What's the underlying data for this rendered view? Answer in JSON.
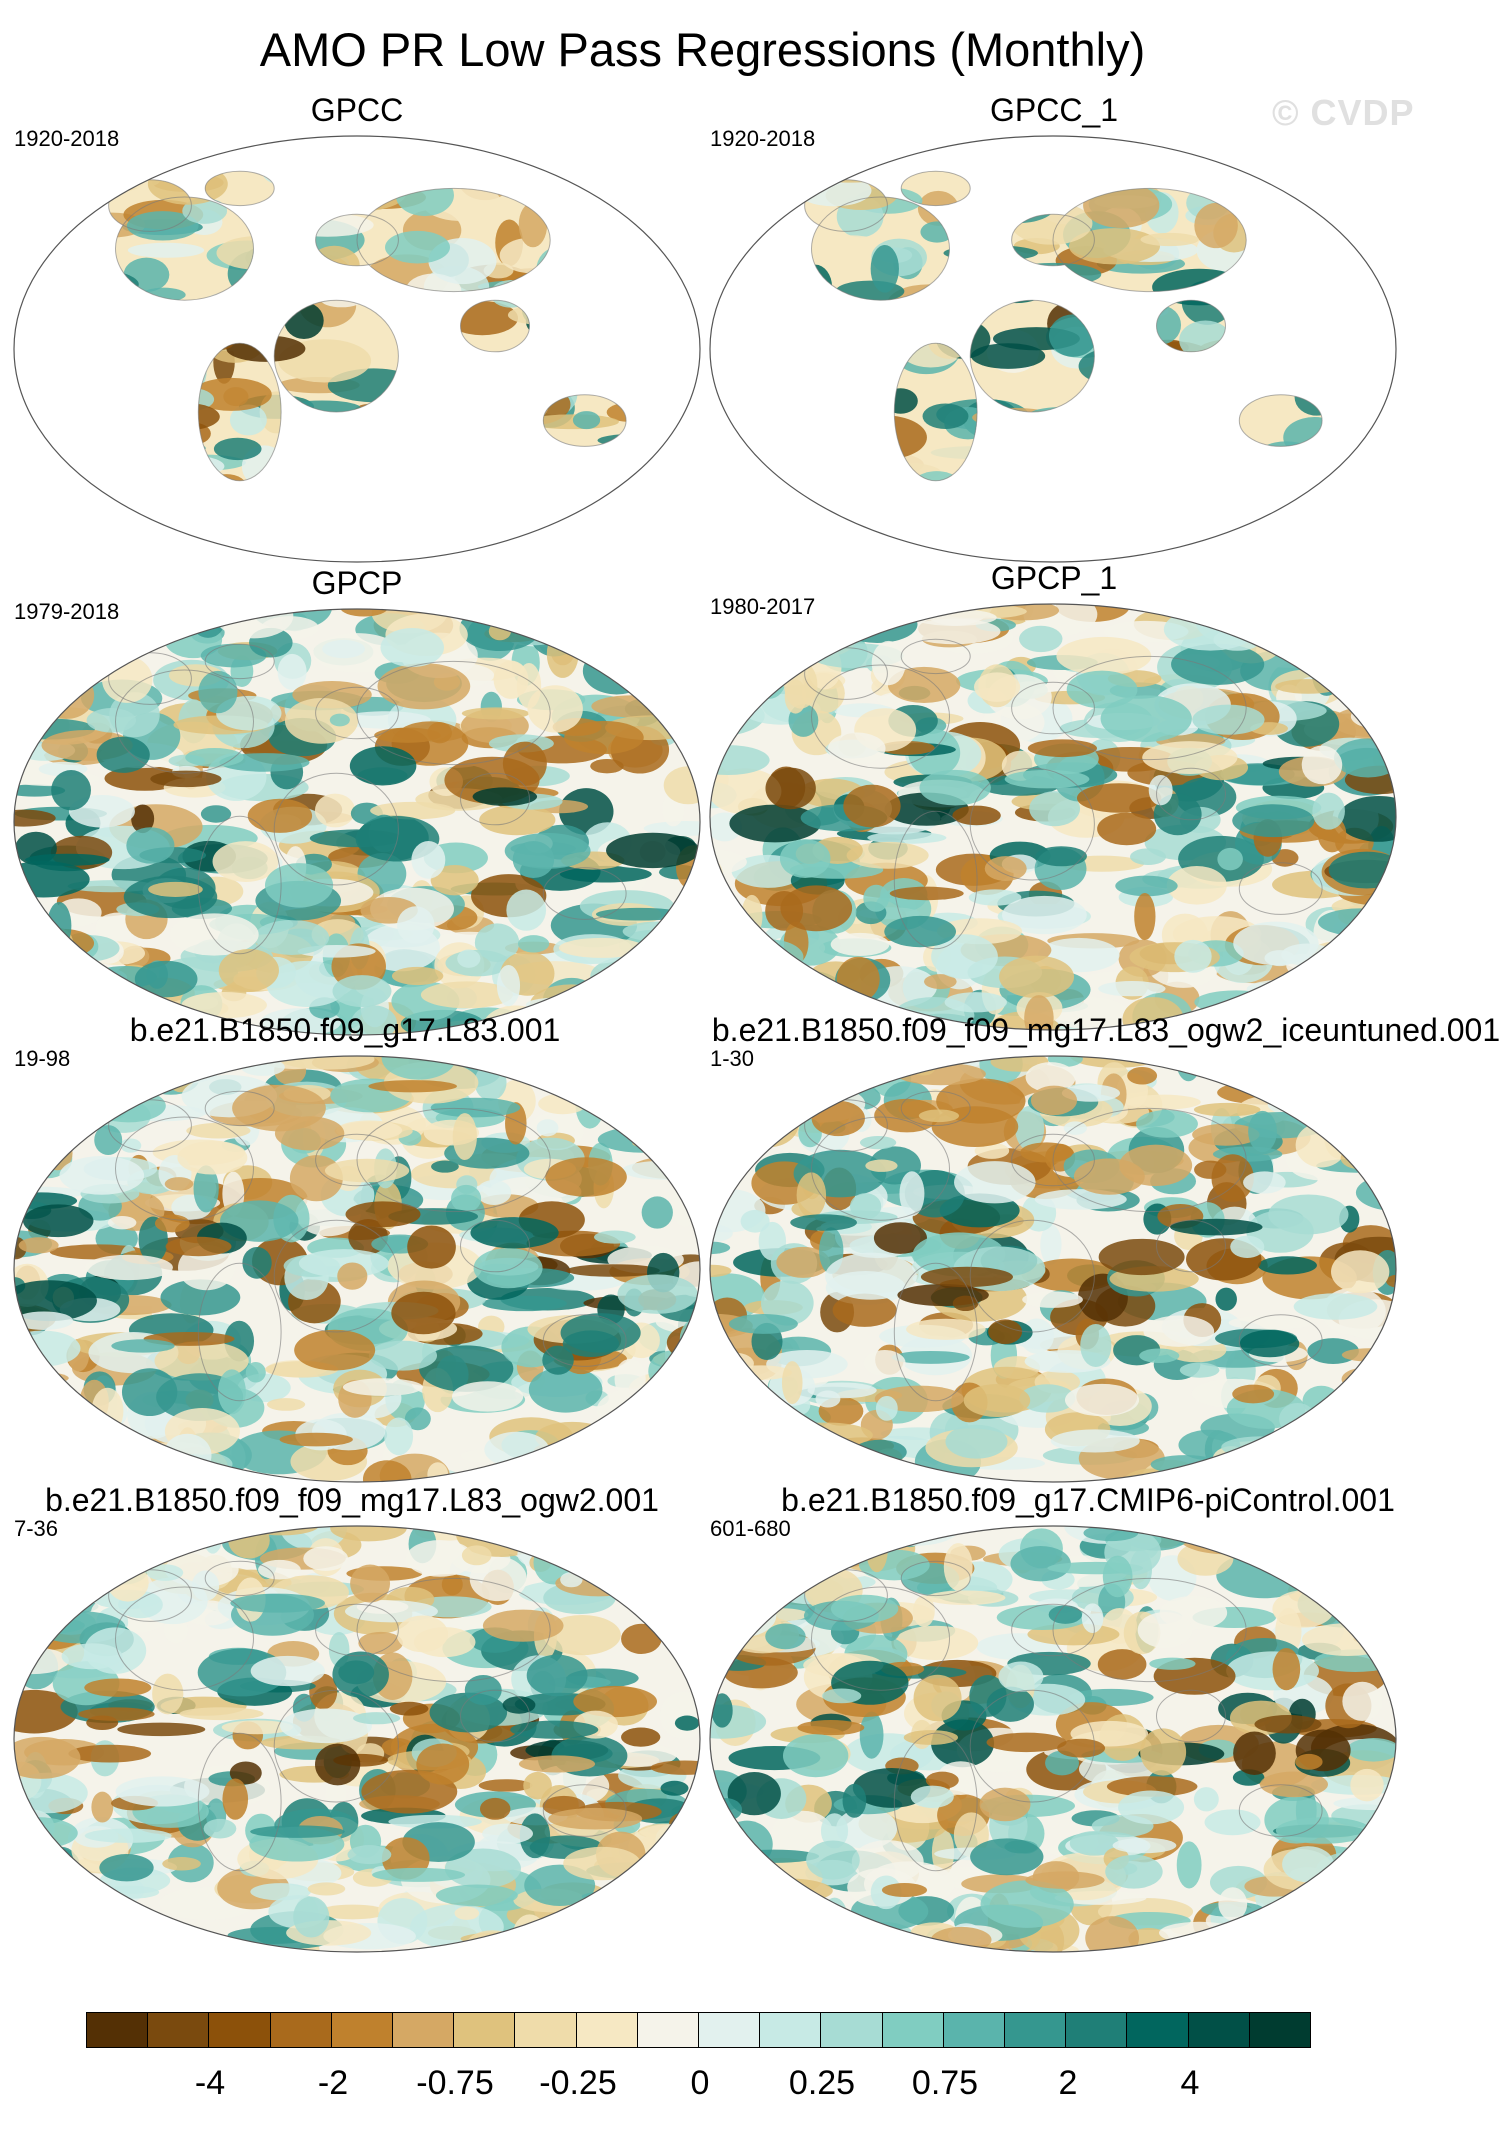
{
  "title": "AMO PR Low Pass Regressions (Monthly)",
  "watermark": "© CVDP",
  "colors": {
    "ocean_outline": "#555555",
    "coast": "#7a7a7a",
    "scale": [
      "#543005",
      "#7a4a0e",
      "#8c510a",
      "#a96a1c",
      "#bf812d",
      "#d5a864",
      "#dfc27d",
      "#efdcaa",
      "#f6e8c3",
      "#f5f3ea",
      "#e2f1ee",
      "#c7eae5",
      "#a7dcd4",
      "#80cdc1",
      "#5ab4ac",
      "#35978f",
      "#1f7f77",
      "#01665e",
      "#015047",
      "#003c30"
    ]
  },
  "panels": [
    {
      "name": "GPCC",
      "period": "1920-2018",
      "field": "land",
      "seed": 11
    },
    {
      "name": "GPCC_1",
      "period": "1920-2018",
      "field": "land",
      "seed": 12
    },
    {
      "name": "GPCP",
      "period": "1979-2018",
      "field": "global",
      "seed": 21
    },
    {
      "name": "GPCP_1",
      "period": "1980-2017",
      "field": "global",
      "seed": 22
    },
    {
      "name": "b.e21.B1850.f09_g17.L83.001",
      "period": "19-98",
      "field": "global",
      "seed": 31
    },
    {
      "name": "b.e21.B1850.f09_f09_mg17.L83_ogw2_iceuntuned.001",
      "period": "1-30",
      "field": "global",
      "seed": 32
    },
    {
      "name": "b.e21.B1850.f09_f09_mg17.L83_ogw2.001",
      "period": "7-36",
      "field": "global",
      "seed": 41
    },
    {
      "name": "b.e21.B1850.f09_g17.CMIP6-piControl.001",
      "period": "601-680",
      "field": "global",
      "seed": 42
    }
  ],
  "colorbar": {
    "tick_labels": [
      "-4",
      "-2",
      "-0.75",
      "-0.25",
      "0",
      "0.25",
      "0.75",
      "2",
      "4"
    ]
  }
}
